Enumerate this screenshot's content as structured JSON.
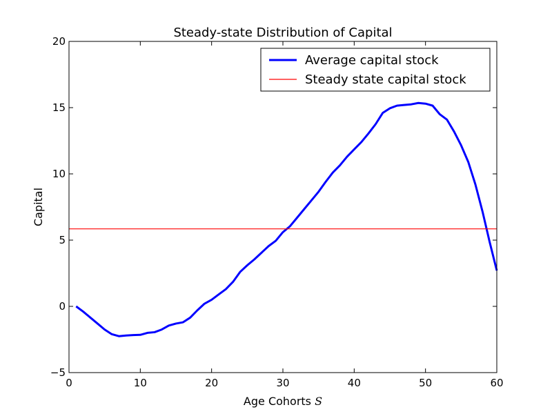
{
  "chart_data": {
    "type": "line",
    "title": "Steady-state Distribution of Capital",
    "xlabel_text": "Age Cohorts ",
    "xlabel_symbol": "S",
    "ylabel": "Capital",
    "xlim": [
      0,
      60
    ],
    "ylim": [
      -5,
      20
    ],
    "xticks": [
      0,
      10,
      20,
      30,
      40,
      50,
      60
    ],
    "yticks": [
      -5,
      0,
      5,
      10,
      15,
      20
    ],
    "grid": false,
    "legend_position": "top-right",
    "series": [
      {
        "name": "Average capital stock",
        "color": "#0000ff",
        "x": [
          1,
          2,
          3,
          4,
          5,
          6,
          7,
          8,
          9,
          10,
          11,
          12,
          13,
          14,
          15,
          16,
          17,
          18,
          19,
          20,
          21,
          22,
          23,
          24,
          25,
          26,
          27,
          28,
          29,
          30,
          31,
          32,
          33,
          34,
          35,
          36,
          37,
          38,
          39,
          40,
          41,
          42,
          43,
          44,
          45,
          46,
          47,
          48,
          49,
          50,
          51,
          52,
          53,
          54,
          55,
          56,
          57,
          58,
          59,
          60
        ],
        "y": [
          0.0,
          -0.4,
          -0.85,
          -1.3,
          -1.75,
          -2.1,
          -2.25,
          -2.2,
          -2.17,
          -2.15,
          -2.0,
          -1.95,
          -1.75,
          -1.45,
          -1.3,
          -1.2,
          -0.85,
          -0.3,
          0.2,
          0.5,
          0.9,
          1.3,
          1.85,
          2.6,
          3.1,
          3.55,
          4.05,
          4.55,
          4.95,
          5.6,
          6.05,
          6.7,
          7.35,
          8.0,
          8.65,
          9.4,
          10.1,
          10.65,
          11.3,
          11.85,
          12.4,
          13.05,
          13.75,
          14.6,
          14.95,
          15.15,
          15.2,
          15.25,
          15.35,
          15.3,
          15.15,
          14.5,
          14.1,
          13.2,
          12.15,
          10.9,
          9.2,
          7.15,
          4.85,
          2.7
        ]
      },
      {
        "name": "Steady state capital stock",
        "color": "#ff0000",
        "x": [
          0,
          60
        ],
        "y": [
          5.85,
          5.85
        ]
      }
    ]
  }
}
